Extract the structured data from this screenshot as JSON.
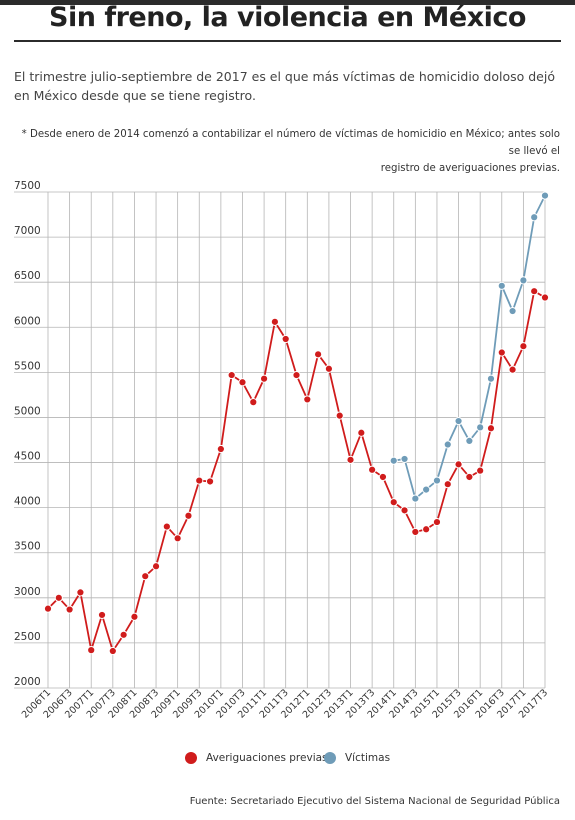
{
  "header": {
    "title": "Sin freno, la violencia en México",
    "subtitle": "El trimestre julio-septiembre de 2017 es el que más víctimas de homicidio doloso dejó en México desde que se tiene registro.",
    "note_line1": "* Desde enero de 2014 comenzó a contabilizar el número de víctimas de homicidio en México; antes solo se llevó el",
    "note_line2": "registro de averiguaciones previas."
  },
  "footer": {
    "source": "Fuente: Secretariado Ejecutivo del Sistema Nacional de Seguridad Pública"
  },
  "colors": {
    "averiguaciones": "#d01c1c",
    "victimas": "#6f9cb8",
    "grid": "#b5b5b5"
  },
  "chart_data": {
    "type": "line",
    "title": "",
    "xlabel": "",
    "ylabel": "",
    "ylim": [
      2000,
      7500
    ],
    "yticks": [
      2000,
      2500,
      3000,
      3500,
      4000,
      4500,
      5000,
      5500,
      6000,
      6500,
      7000,
      7500
    ],
    "grid": true,
    "legend_position": "bottom",
    "x": [
      "2006T1",
      "2006T2",
      "2006T3",
      "2006T4",
      "2007T1",
      "2007T2",
      "2007T3",
      "2007T4",
      "2008T1",
      "2008T2",
      "2008T3",
      "2008T4",
      "2009T1",
      "2009T2",
      "2009T3",
      "2009T4",
      "2010T1",
      "2010T2",
      "2010T3",
      "2010T4",
      "2011T1",
      "2011T2",
      "2011T3",
      "2011T4",
      "2012T1",
      "2012T2",
      "2012T3",
      "2012T4",
      "2013T1",
      "2013T2",
      "2013T3",
      "2013T4",
      "2014T1",
      "2014T2",
      "2014T3",
      "2014T4",
      "2015T1",
      "2015T2",
      "2015T3",
      "2015T4",
      "2016T1",
      "2016T2",
      "2016T3",
      "2016T4",
      "2017T1",
      "2017T2",
      "2017T3"
    ],
    "x_tick_labels": [
      "2006T1",
      "2006T3",
      "2007T1",
      "2007T3",
      "2008T1",
      "2008T3",
      "2009T1",
      "2009T3",
      "2010T1",
      "2010T3",
      "2011T1",
      "2011T3",
      "2012T1",
      "2012T3",
      "2013T1",
      "2013T3",
      "2014T1",
      "2014T3",
      "2015T1",
      "2015T3",
      "2016T1",
      "2016T3",
      "2017T1",
      "2017T3"
    ],
    "series": [
      {
        "name": "Averiguaciones previas",
        "values": [
          2880,
          3000,
          2870,
          3060,
          2420,
          2810,
          2410,
          2590,
          2790,
          3240,
          3350,
          3790,
          3660,
          3910,
          4300,
          4290,
          4650,
          5470,
          5390,
          5170,
          5430,
          6060,
          5870,
          5470,
          5200,
          5700,
          5540,
          5020,
          4530,
          4830,
          4420,
          4340,
          4060,
          3970,
          3730,
          3760,
          3840,
          4260,
          4480,
          4340,
          4410,
          4880,
          5720,
          5530,
          5790,
          6400,
          6330
        ]
      },
      {
        "name": "Víctimas",
        "values": [
          null,
          null,
          null,
          null,
          null,
          null,
          null,
          null,
          null,
          null,
          null,
          null,
          null,
          null,
          null,
          null,
          null,
          null,
          null,
          null,
          null,
          null,
          null,
          null,
          null,
          null,
          null,
          null,
          null,
          null,
          null,
          null,
          4520,
          4540,
          4100,
          4200,
          4300,
          4700,
          4960,
          4740,
          4890,
          5430,
          6460,
          6180,
          6520,
          7220,
          7460
        ]
      }
    ]
  }
}
